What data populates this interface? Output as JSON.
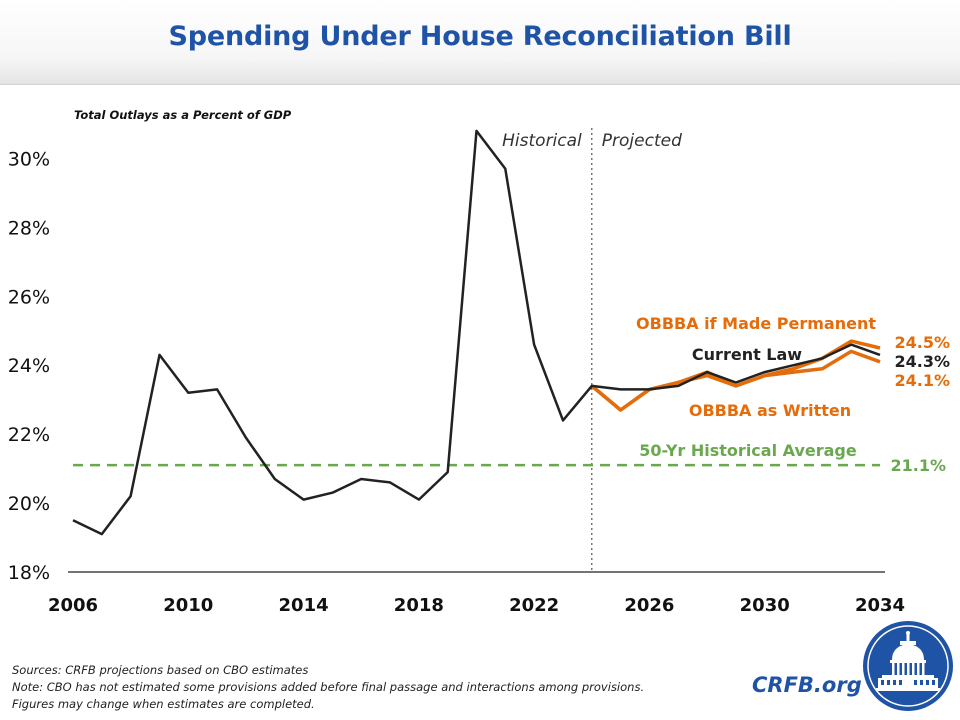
{
  "title": "Spending Under House Reconciliation Bill",
  "chart_data": {
    "type": "line",
    "subtitle": "Total Outlays as a Percent of GDP",
    "ylim": [
      18,
      31
    ],
    "xlim": [
      2006,
      2034
    ],
    "x_ticks": [
      2006,
      2010,
      2014,
      2018,
      2022,
      2026,
      2030,
      2034
    ],
    "y_ticks": [
      18,
      20,
      22,
      24,
      26,
      28,
      30
    ],
    "y_tick_format": "%",
    "grid": false,
    "divider": {
      "x": 2024,
      "left_label": "Historical",
      "right_label": "Projected"
    },
    "reference_lines": [
      {
        "name": "50-Yr Historical Average",
        "value": 21.1,
        "value_label": "21.1%",
        "color": "#6aa84f",
        "dashed": true
      }
    ],
    "series": [
      {
        "name": "Current Law",
        "color": "#222222",
        "end_label": "24.3%",
        "x": [
          2006,
          2007,
          2008,
          2009,
          2010,
          2011,
          2012,
          2013,
          2014,
          2015,
          2016,
          2017,
          2018,
          2019,
          2020,
          2021,
          2022,
          2023,
          2024,
          2025,
          2026,
          2027,
          2028,
          2029,
          2030,
          2031,
          2032,
          2033,
          2034
        ],
        "values": [
          19.5,
          19.1,
          20.2,
          24.3,
          23.2,
          23.3,
          21.9,
          20.7,
          20.1,
          20.3,
          20.7,
          20.6,
          20.1,
          20.9,
          30.8,
          29.7,
          24.6,
          22.4,
          23.4,
          23.3,
          23.3,
          23.4,
          23.8,
          23.5,
          23.8,
          24.0,
          24.2,
          24.6,
          24.3
        ]
      },
      {
        "name": "OBBBA if Made Permanent",
        "color": "#e46c0a",
        "end_label": "24.5%",
        "x": [
          2024,
          2025,
          2026,
          2027,
          2028,
          2029,
          2030,
          2031,
          2032,
          2033,
          2034
        ],
        "values": [
          23.4,
          22.7,
          23.3,
          23.5,
          23.8,
          23.4,
          23.7,
          23.9,
          24.2,
          24.7,
          24.5
        ]
      },
      {
        "name": "OBBBA as Written",
        "color": "#e46c0a",
        "end_label": "24.1%",
        "x": [
          2024,
          2025,
          2026,
          2027,
          2028,
          2029,
          2030,
          2031,
          2032,
          2033,
          2034
        ],
        "values": [
          23.4,
          22.7,
          23.3,
          23.5,
          23.7,
          23.4,
          23.7,
          23.8,
          23.9,
          24.4,
          24.1
        ]
      }
    ]
  },
  "footer": {
    "sources": "Sources: CRFB projections based on CBO estimates",
    "note1": "Note: CBO has not estimated some provisions added before final passage and interactions among provisions.",
    "note2": "Figures may change when estimates are completed."
  },
  "brand": "CRFB.org",
  "logo_icon": "capitol-dome-seal-icon"
}
